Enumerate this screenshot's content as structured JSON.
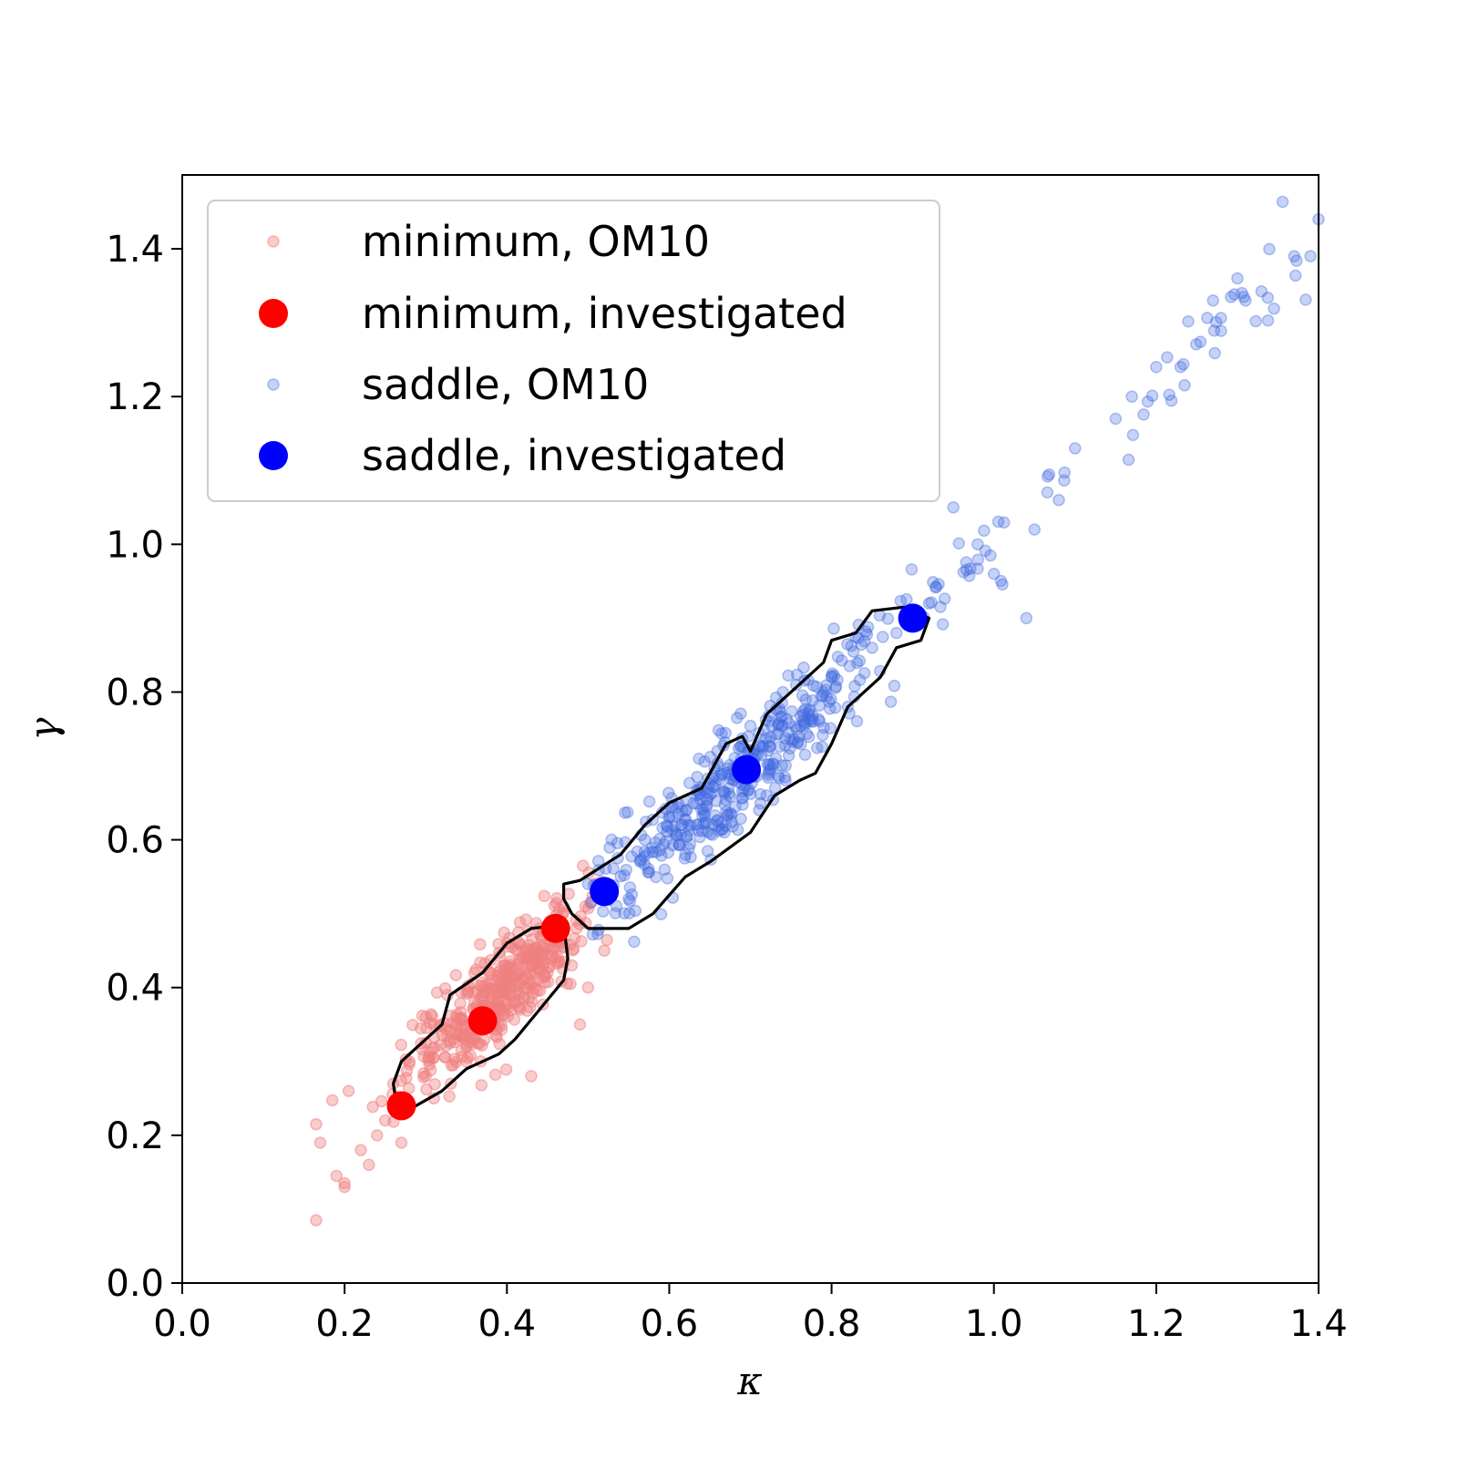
{
  "chart_data": {
    "type": "scatter",
    "xlabel": "κ",
    "ylabel": "γ",
    "xlim": [
      0.0,
      1.4
    ],
    "ylim": [
      0.0,
      1.5
    ],
    "xticks": [
      "0.0",
      "0.2",
      "0.4",
      "0.6",
      "0.8",
      "1.0",
      "1.2",
      "1.4"
    ],
    "yticks": [
      "0.0",
      "0.2",
      "0.4",
      "0.6",
      "0.8",
      "1.0",
      "1.2",
      "1.4"
    ],
    "grid": false,
    "legend_position": "top-left",
    "series": [
      {
        "name": "minimum, OM10",
        "color": "#f08080",
        "marker": "small-circle",
        "alpha": 0.4,
        "distribution": "dense cloud roughly along γ ≈ κ for κ from about 0.16 to 0.52",
        "sample_points": [
          [
            0.165,
            0.085
          ],
          [
            0.165,
            0.215
          ],
          [
            0.17,
            0.19
          ],
          [
            0.19,
            0.145
          ],
          [
            0.2,
            0.13
          ],
          [
            0.2,
            0.135
          ],
          [
            0.205,
            0.26
          ],
          [
            0.22,
            0.18
          ],
          [
            0.23,
            0.16
          ],
          [
            0.24,
            0.2
          ],
          [
            0.25,
            0.22
          ],
          [
            0.26,
            0.27
          ],
          [
            0.27,
            0.19
          ],
          [
            0.28,
            0.3
          ],
          [
            0.3,
            0.28
          ],
          [
            0.3,
            0.36
          ],
          [
            0.31,
            0.25
          ],
          [
            0.33,
            0.34
          ],
          [
            0.35,
            0.3
          ],
          [
            0.36,
            0.38
          ],
          [
            0.38,
            0.42
          ],
          [
            0.39,
            0.35
          ],
          [
            0.4,
            0.46
          ],
          [
            0.41,
            0.39
          ],
          [
            0.42,
            0.44
          ],
          [
            0.43,
            0.28
          ],
          [
            0.44,
            0.48
          ],
          [
            0.45,
            0.42
          ],
          [
            0.46,
            0.44
          ],
          [
            0.48,
            0.43
          ],
          [
            0.49,
            0.35
          ],
          [
            0.5,
            0.4
          ],
          [
            0.52,
            0.45
          ]
        ]
      },
      {
        "name": "minimum, investigated",
        "color": "#ff0000",
        "marker": "large-circle",
        "points": [
          [
            0.27,
            0.24
          ],
          [
            0.37,
            0.355
          ],
          [
            0.46,
            0.48
          ]
        ]
      },
      {
        "name": "saddle, OM10",
        "color": "#4169e1",
        "marker": "small-circle",
        "alpha": 0.3,
        "distribution": "elongated cloud along γ ≈ κ for κ from about 0.5 to 1.4",
        "sample_points": [
          [
            0.5,
            0.54
          ],
          [
            0.55,
            0.52
          ],
          [
            0.57,
            0.6
          ],
          [
            0.6,
            0.63
          ],
          [
            0.62,
            0.58
          ],
          [
            0.64,
            0.67
          ],
          [
            0.66,
            0.7
          ],
          [
            0.7,
            0.72
          ],
          [
            0.72,
            0.66
          ],
          [
            0.74,
            0.8
          ],
          [
            0.76,
            0.74
          ],
          [
            0.8,
            0.82
          ],
          [
            0.82,
            0.78
          ],
          [
            0.85,
            0.86
          ],
          [
            0.88,
            0.88
          ],
          [
            0.92,
            0.92
          ],
          [
            0.95,
            1.05
          ],
          [
            0.98,
            1.0
          ],
          [
            1.0,
            0.96
          ],
          [
            1.04,
            0.9
          ],
          [
            1.05,
            1.02
          ],
          [
            1.08,
            1.06
          ],
          [
            1.1,
            1.13
          ],
          [
            1.15,
            1.17
          ],
          [
            1.17,
            1.2
          ],
          [
            1.2,
            1.24
          ],
          [
            1.23,
            1.24
          ],
          [
            1.27,
            1.33
          ],
          [
            1.3,
            1.36
          ],
          [
            1.31,
            1.33
          ],
          [
            1.37,
            1.39
          ],
          [
            1.39,
            1.39
          ],
          [
            1.4,
            1.44
          ]
        ]
      },
      {
        "name": "saddle, investigated",
        "color": "#0000ff",
        "marker": "large-circle",
        "points": [
          [
            0.52,
            0.53
          ],
          [
            0.695,
            0.695
          ],
          [
            0.9,
            0.9
          ]
        ]
      }
    ],
    "contours": [
      {
        "for": "minimum",
        "color": "#000000",
        "path": [
          [
            0.265,
            0.235
          ],
          [
            0.26,
            0.27
          ],
          [
            0.27,
            0.3
          ],
          [
            0.3,
            0.33
          ],
          [
            0.32,
            0.35
          ],
          [
            0.33,
            0.39
          ],
          [
            0.37,
            0.42
          ],
          [
            0.4,
            0.46
          ],
          [
            0.43,
            0.48
          ],
          [
            0.47,
            0.485
          ],
          [
            0.475,
            0.44
          ],
          [
            0.47,
            0.41
          ],
          [
            0.44,
            0.37
          ],
          [
            0.41,
            0.33
          ],
          [
            0.39,
            0.31
          ],
          [
            0.35,
            0.29
          ],
          [
            0.32,
            0.26
          ],
          [
            0.28,
            0.235
          ]
        ]
      },
      {
        "for": "saddle",
        "color": "#000000",
        "path": [
          [
            0.47,
            0.54
          ],
          [
            0.49,
            0.545
          ],
          [
            0.54,
            0.58
          ],
          [
            0.57,
            0.62
          ],
          [
            0.6,
            0.65
          ],
          [
            0.64,
            0.67
          ],
          [
            0.67,
            0.73
          ],
          [
            0.69,
            0.74
          ],
          [
            0.7,
            0.72
          ],
          [
            0.72,
            0.77
          ],
          [
            0.74,
            0.79
          ],
          [
            0.79,
            0.84
          ],
          [
            0.8,
            0.87
          ],
          [
            0.83,
            0.88
          ],
          [
            0.85,
            0.91
          ],
          [
            0.89,
            0.915
          ],
          [
            0.92,
            0.9
          ],
          [
            0.91,
            0.87
          ],
          [
            0.88,
            0.86
          ],
          [
            0.86,
            0.82
          ],
          [
            0.82,
            0.78
          ],
          [
            0.8,
            0.73
          ],
          [
            0.78,
            0.69
          ],
          [
            0.76,
            0.68
          ],
          [
            0.73,
            0.66
          ],
          [
            0.7,
            0.61
          ],
          [
            0.65,
            0.57
          ],
          [
            0.62,
            0.55
          ],
          [
            0.58,
            0.5
          ],
          [
            0.55,
            0.48
          ],
          [
            0.5,
            0.48
          ],
          [
            0.48,
            0.5
          ],
          [
            0.47,
            0.52
          ]
        ]
      }
    ]
  }
}
